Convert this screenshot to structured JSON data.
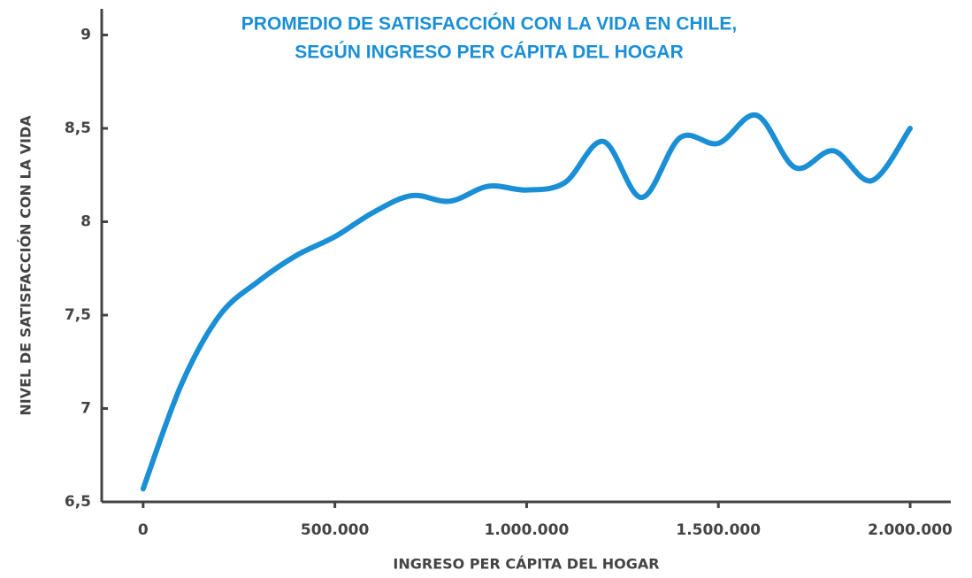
{
  "chart_data": {
    "type": "line",
    "title": [
      "PROMEDIO DE SATISFACCIÓN CON LA VIDA EN CHILE,",
      "SEGÚN INGRESO PER CÁPITA DEL HOGAR"
    ],
    "x_label": "INGRESO PER CÁPITA DEL HOGAR",
    "y_label": "NIVEL DE SATISFACCIÓN CON LA VIDA",
    "x": [
      0,
      100000,
      200000,
      300000,
      400000,
      500000,
      600000,
      700000,
      800000,
      900000,
      1000000,
      1100000,
      1200000,
      1300000,
      1400000,
      1500000,
      1600000,
      1700000,
      1800000,
      1900000,
      2000000
    ],
    "series": [
      {
        "name": "Promedio",
        "color": "#1a8fd6",
        "values": [
          6.57,
          7.13,
          7.5,
          7.68,
          7.82,
          7.92,
          8.05,
          8.14,
          8.11,
          8.19,
          8.17,
          8.21,
          8.43,
          8.13,
          8.45,
          8.42,
          8.57,
          8.29,
          8.38,
          8.22,
          8.5
        ]
      }
    ],
    "xlim": [
      -108000,
      2106000
    ],
    "ylim": [
      6.5,
      9.14
    ],
    "xticks": [
      0,
      {
        "value": 500000,
        "label": "500.000"
      },
      {
        "value": 1000000,
        "label": "1.000.000"
      },
      {
        "value": 1500000,
        "label": "1.500.000"
      },
      {
        "value": 2000000,
        "label": "2.000.000"
      }
    ],
    "yticks": [
      {
        "value": 6.5,
        "label": "6,5"
      },
      7,
      {
        "value": 7.5,
        "label": "7,5"
      },
      8,
      {
        "value": 8.5,
        "label": "8,5"
      },
      9
    ],
    "grid": false
  }
}
